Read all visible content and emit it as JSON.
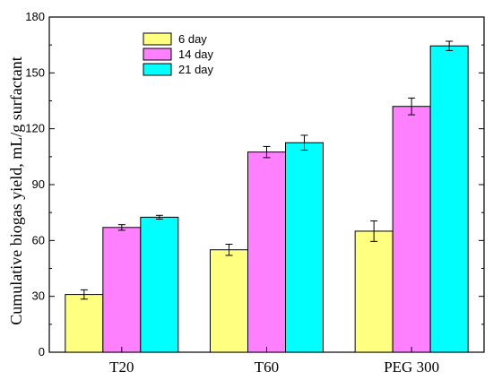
{
  "chart_data": {
    "type": "bar",
    "title": "",
    "xlabel": "",
    "ylabel": "Cumulative biogas yield, mL/g surfactant",
    "categories": [
      "T20",
      "T60",
      "PEG 300"
    ],
    "ylim": [
      0,
      180
    ],
    "yticks": [
      0,
      30,
      60,
      90,
      120,
      150,
      180
    ],
    "legend_position": "top-left",
    "grid": false,
    "series": [
      {
        "name": "6   day",
        "color": "#ffff80",
        "values": [
          31,
          55,
          65
        ],
        "errors": [
          2.5,
          3,
          5.5
        ]
      },
      {
        "name": "14  day",
        "color": "#ff80ff",
        "values": [
          67,
          107.5,
          132
        ],
        "errors": [
          1.5,
          3,
          4.5
        ]
      },
      {
        "name": "21  day",
        "color": "#00ffff",
        "values": [
          72.5,
          112.5,
          164.5
        ],
        "errors": [
          1,
          4,
          2.5
        ]
      }
    ]
  }
}
